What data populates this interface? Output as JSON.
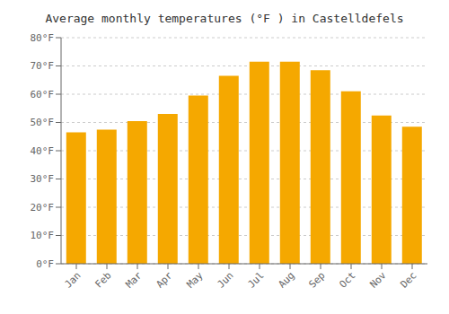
{
  "chart_data": {
    "type": "bar",
    "title": "Average monthly temperatures (°F ) in Castelldefels",
    "categories": [
      "Jan",
      "Feb",
      "Mar",
      "Apr",
      "May",
      "Jun",
      "Jul",
      "Aug",
      "Sep",
      "Oct",
      "Nov",
      "Dec"
    ],
    "values": [
      46.5,
      47.5,
      50.5,
      53.0,
      59.5,
      66.5,
      71.5,
      71.5,
      68.5,
      61.0,
      52.5,
      48.5
    ],
    "color": "#F5A800",
    "ylim": [
      0,
      80
    ],
    "yticks": [
      {
        "value": 0,
        "label": "0°F"
      },
      {
        "value": 10,
        "label": "10°F"
      },
      {
        "value": 20,
        "label": "20°F"
      },
      {
        "value": 30,
        "label": "30°F"
      },
      {
        "value": 40,
        "label": "40°F"
      },
      {
        "value": 50,
        "label": "50°F"
      },
      {
        "value": 60,
        "label": "60°F"
      },
      {
        "value": 70,
        "label": "70°F"
      },
      {
        "value": 80,
        "label": "80°F"
      }
    ],
    "grid": true
  }
}
